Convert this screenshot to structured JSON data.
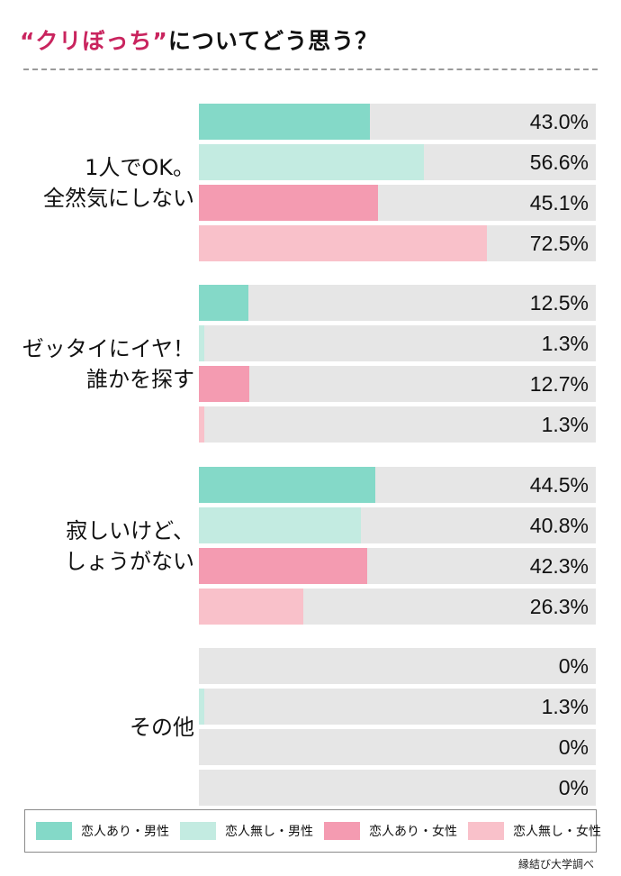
{
  "title": {
    "highlight": "“クリぼっち”",
    "rest": "についてどう思う？"
  },
  "source": "縁結び大学調べ",
  "colors": {
    "male_with_partner": "#84d9c8",
    "male_no_partner": "#c3ebe1",
    "female_with_partner": "#f49bb1",
    "female_no_partner": "#f9c1ca",
    "bar_background": "#e6e6e6",
    "title_accent": "#c9245e"
  },
  "chart_data": {
    "type": "bar",
    "orientation": "horizontal",
    "xlim": [
      0,
      100
    ],
    "unit": "%",
    "legend_position": "bottom",
    "categories": [
      "1人でOK。\n全然気にしない",
      "ゼッタイにイヤ！\n誰かを探す",
      "寂しいけど、\nしょうがない",
      "その他"
    ],
    "series": [
      {
        "name": "恋人あり・男性",
        "values": [
          43.0,
          12.5,
          44.5,
          0
        ],
        "labels": [
          "43.0%",
          "12.5%",
          "44.5%",
          "0%"
        ]
      },
      {
        "name": "恋人無し・男性",
        "values": [
          56.6,
          1.3,
          40.8,
          1.3
        ],
        "labels": [
          "56.6%",
          "1.3%",
          "40.8%",
          "1.3%"
        ]
      },
      {
        "name": "恋人あり・女性",
        "values": [
          45.1,
          12.7,
          42.3,
          0
        ],
        "labels": [
          "45.1%",
          "12.7%",
          "42.3%",
          "0%"
        ]
      },
      {
        "name": "恋人無し・女性",
        "values": [
          72.5,
          1.3,
          26.3,
          0
        ],
        "labels": [
          "72.5%",
          "1.3%",
          "26.3%",
          "0%"
        ]
      }
    ]
  }
}
